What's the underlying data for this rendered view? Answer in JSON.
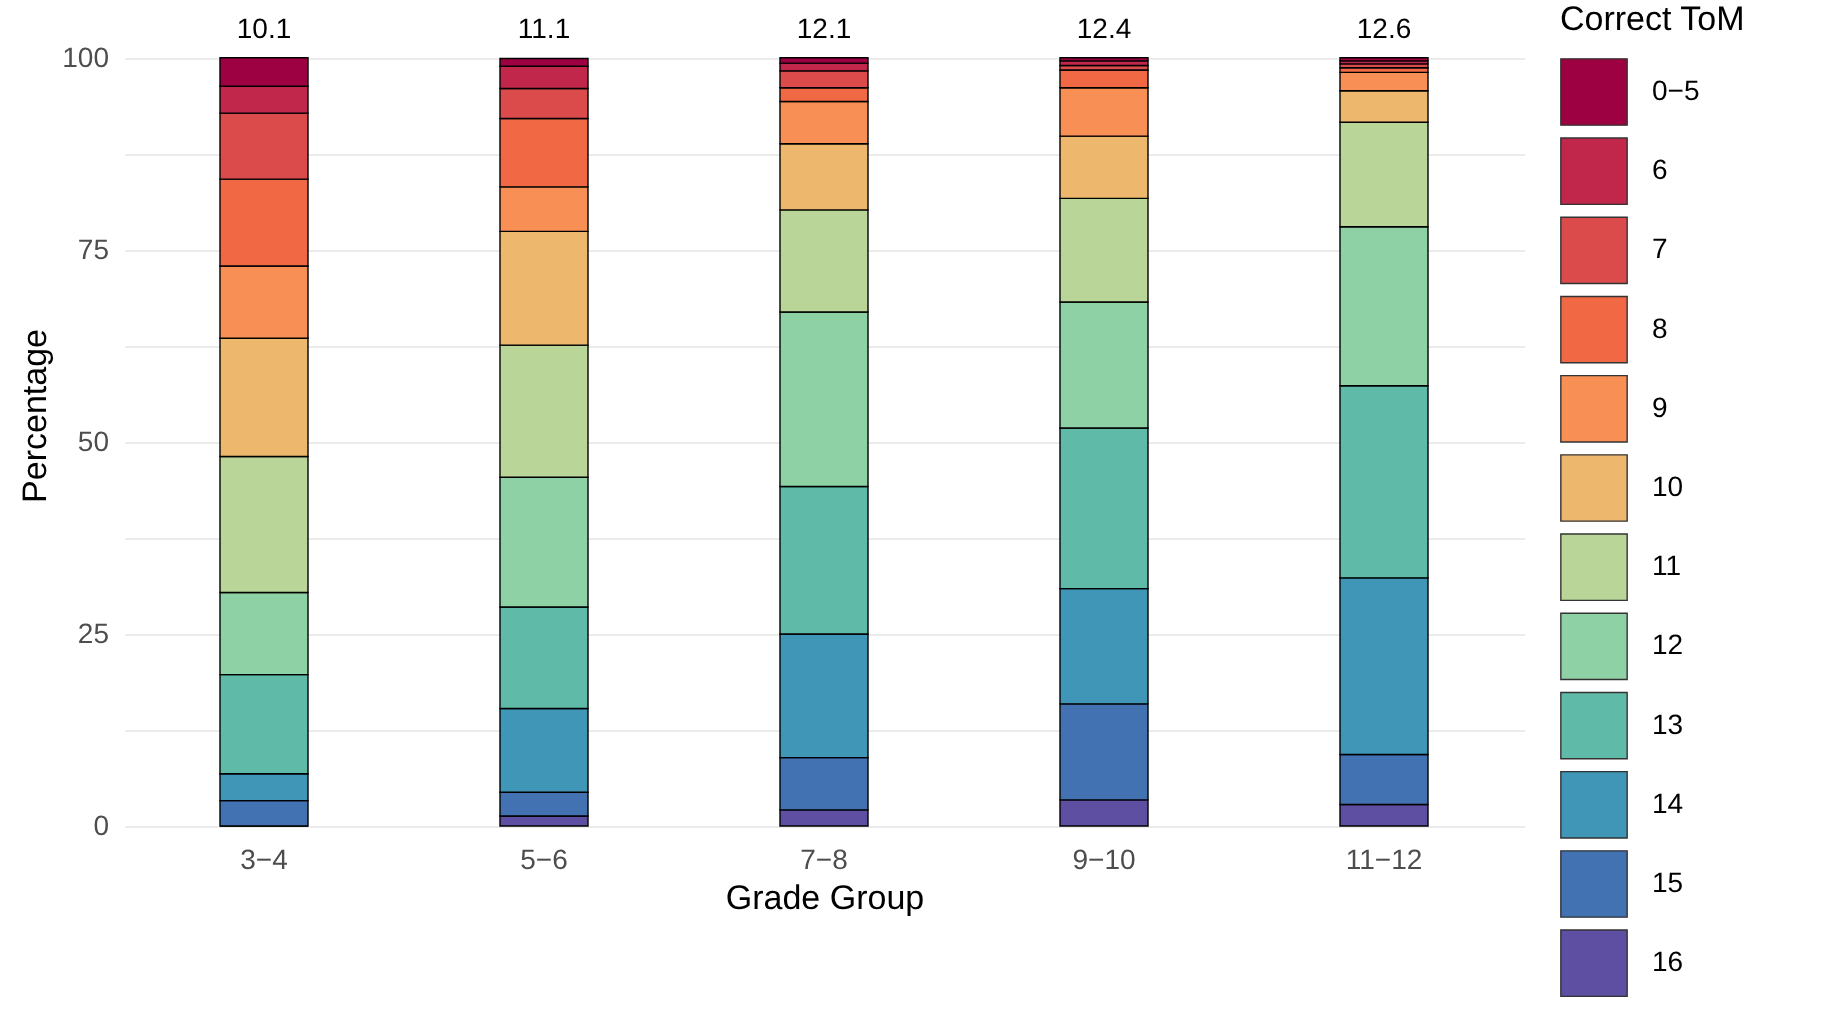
{
  "chart_data": {
    "type": "bar",
    "stacked": true,
    "xlabel": "Grade Group",
    "ylabel": "Percentage",
    "legend_title": "Correct ToM",
    "legend": "right",
    "grid": "y",
    "categories": [
      "3−4",
      "5−6",
      "7−8",
      "9−10",
      "11−12"
    ],
    "ylim": [
      0,
      107
    ],
    "yticks": [
      0,
      {
        "value": 12.5,
        "label": null
      },
      25,
      {
        "value": 37.5,
        "label": null
      },
      50,
      {
        "value": 62.5,
        "label": null
      },
      75,
      {
        "value": 87.5,
        "label": null
      },
      100
    ],
    "series": [
      {
        "name": "16",
        "color": "#5e4fa2",
        "values": [
          0,
          1.3,
          2.1,
          3.4,
          2.8
        ]
      },
      {
        "name": "15",
        "color": "#4272b2",
        "values": [
          3.3,
          3.1,
          6.8,
          12.5,
          6.5
        ]
      },
      {
        "name": "14",
        "color": "#3f96b7",
        "values": [
          3.5,
          10.9,
          16.1,
          15.0,
          23.0
        ]
      },
      {
        "name": "13",
        "color": "#5fbba8",
        "values": [
          12.9,
          13.2,
          19.2,
          20.9,
          25.0
        ]
      },
      {
        "name": "12",
        "color": "#8ed1a4",
        "values": [
          10.7,
          16.9,
          22.7,
          16.4,
          20.7
        ]
      },
      {
        "name": "11",
        "color": "#b9d597",
        "values": [
          17.7,
          17.2,
          13.3,
          13.5,
          13.6
        ]
      },
      {
        "name": "10",
        "color": "#edb86e",
        "values": [
          15.4,
          14.8,
          8.6,
          8.1,
          4.1
        ]
      },
      {
        "name": "9",
        "color": "#f88f54",
        "values": [
          9.4,
          5.8,
          5.5,
          6.3,
          2.4
        ]
      },
      {
        "name": "8",
        "color": "#f06944",
        "values": [
          11.3,
          8.9,
          1.8,
          2.3,
          0.6
        ]
      },
      {
        "name": "7",
        "color": "#dc4b4c",
        "values": [
          8.6,
          3.9,
          2.2,
          0.6,
          0.5
        ]
      },
      {
        "name": "6",
        "color": "#c1274a",
        "values": [
          3.5,
          2.9,
          1.0,
          0.6,
          0.4
        ]
      },
      {
        "name": "0−5",
        "color": "#9e0142",
        "values": [
          3.7,
          1.0,
          0.7,
          0.4,
          0.4
        ]
      }
    ],
    "annotations": [
      "10.1",
      "11.1",
      "12.1",
      "12.4",
      "12.6"
    ]
  }
}
